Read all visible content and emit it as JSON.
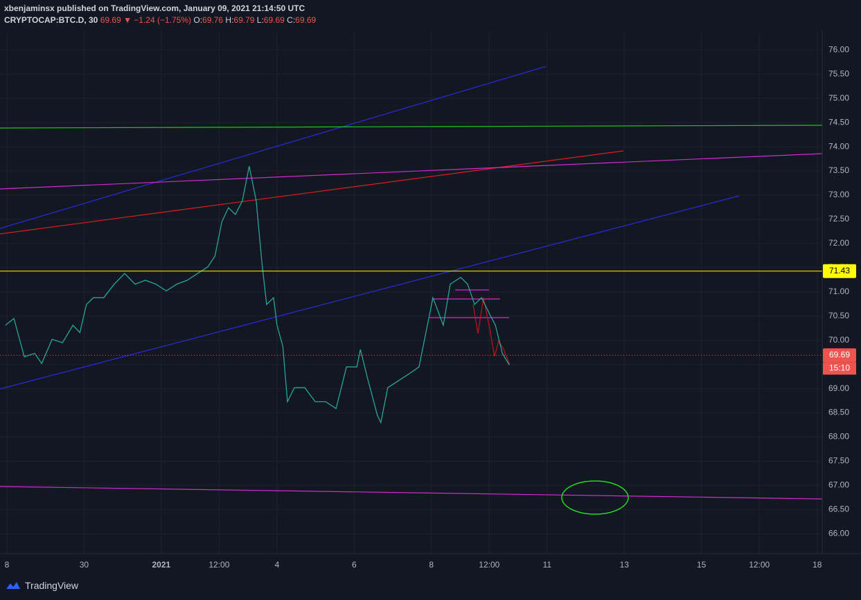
{
  "header": {
    "publisher": "xbenjaminsx published on TradingView.com, January 09, 2021 21:14:50 UTC",
    "symbol": "CRYPTOCAP:BTC.D, 30",
    "last": "69.69",
    "change": "▼ −1.24 (−1.75%)",
    "ohlc": [
      {
        "label": "O:",
        "value": "69.76"
      },
      {
        "label": "H:",
        "value": "69.79"
      },
      {
        "label": "L:",
        "value": "69.69"
      },
      {
        "label": "C:",
        "value": "69.69"
      }
    ]
  },
  "footer": {
    "brand": "TradingView"
  },
  "chart_data": {
    "type": "line",
    "color": "#26a69a",
    "grid": true,
    "x": [
      -4.04,
      -3.82,
      -3.55,
      -3.28,
      -3.1,
      -2.83,
      -2.56,
      -2.29,
      -2.11,
      -1.94,
      -1.76,
      -1.49,
      -1.22,
      -0.95,
      -0.68,
      -0.41,
      -0.14,
      0.13,
      0.4,
      0.67,
      0.94,
      1.21,
      1.39,
      1.57,
      1.74,
      1.92,
      2.1,
      2.28,
      2.46,
      2.61,
      2.73,
      2.91,
      3.0,
      3.15,
      3.27,
      3.45,
      3.72,
      3.99,
      4.26,
      4.53,
      4.8,
      5.07,
      5.16,
      5.34,
      5.6,
      5.69,
      5.87,
      6.14,
      6.41,
      6.68,
      6.86,
      7.04,
      7.31,
      7.49,
      7.76,
      7.94,
      8.12,
      8.3,
      8.48,
      8.66,
      8.84,
      9.02
    ],
    "values": [
      70.31,
      70.45,
      69.66,
      69.73,
      69.52,
      70.02,
      69.95,
      70.31,
      70.16,
      70.74,
      70.88,
      70.88,
      71.16,
      71.38,
      71.16,
      71.24,
      71.16,
      71.02,
      71.16,
      71.24,
      71.38,
      71.52,
      71.74,
      72.45,
      72.74,
      72.6,
      72.88,
      73.6,
      72.88,
      71.59,
      70.74,
      70.88,
      70.31,
      69.88,
      68.73,
      69.02,
      69.02,
      68.73,
      68.73,
      68.59,
      69.45,
      69.45,
      69.81,
      69.23,
      68.45,
      68.3,
      69.02,
      69.16,
      69.3,
      69.45,
      70.16,
      70.88,
      70.31,
      71.16,
      71.3,
      71.16,
      70.74,
      70.88,
      70.59,
      70.31,
      69.73,
      69.49
    ],
    "xlim": [
      -4.18,
      17.13
    ],
    "xticks": [
      {
        "value": -4,
        "label": "8"
      },
      {
        "value": -2,
        "label": "30"
      },
      {
        "value": 0,
        "label": "2021"
      },
      {
        "value": 1.5,
        "label": "12:00"
      },
      {
        "value": 3,
        "label": "4"
      },
      {
        "value": 5,
        "label": "6"
      },
      {
        "value": 7,
        "label": "8"
      },
      {
        "value": 8.5,
        "label": "12:00"
      },
      {
        "value": 10,
        "label": "11"
      },
      {
        "value": 12,
        "label": "13"
      },
      {
        "value": 14,
        "label": "15"
      },
      {
        "value": 15.5,
        "label": "12:00"
      },
      {
        "value": 17,
        "label": "18"
      }
    ],
    "ylim": [
      65.59,
      76.39
    ],
    "yticks": [
      {
        "value": 66,
        "label": "66.00"
      },
      {
        "value": 66.5,
        "label": "66.50"
      },
      {
        "value": 67,
        "label": "67.00"
      },
      {
        "value": 67.5,
        "label": "67.50"
      },
      {
        "value": 68,
        "label": "68.00"
      },
      {
        "value": 68.5,
        "label": "68.50"
      },
      {
        "value": 69,
        "label": "69.00"
      },
      {
        "value": 69.5,
        "label": "69.50"
      },
      {
        "value": 70,
        "label": "70.00"
      },
      {
        "value": 70.5,
        "label": "70.50"
      },
      {
        "value": 71,
        "label": "71.00"
      },
      {
        "value": 71.5,
        "label": "71.50"
      },
      {
        "value": 72,
        "label": "72.00"
      },
      {
        "value": 72.5,
        "label": "72.50"
      },
      {
        "value": 73,
        "label": "73.00"
      },
      {
        "value": 73.5,
        "label": "73.50"
      },
      {
        "value": 74,
        "label": "74.00"
      },
      {
        "value": 74.5,
        "label": "74.50"
      },
      {
        "value": 75,
        "label": "75.00"
      },
      {
        "value": 75.5,
        "label": "75.50"
      },
      {
        "value": 76,
        "label": "76.00"
      }
    ],
    "price_lines": [
      {
        "value": 71.43,
        "color": "#ffff00",
        "text_color": "#000000",
        "dotted": false
      },
      {
        "value": 69.69,
        "color": "#ef5350",
        "text_color": "#ffffff",
        "dotted": true,
        "countdown": "15:10"
      }
    ]
  }
}
